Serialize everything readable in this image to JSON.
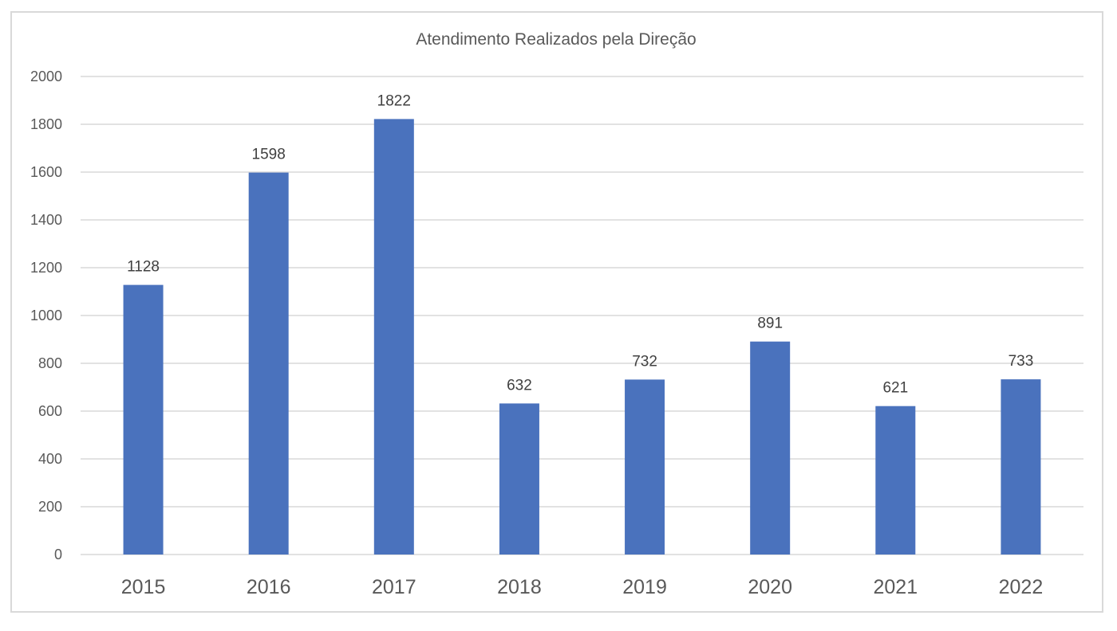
{
  "chart_data": {
    "type": "bar",
    "title": "Atendimento Realizados pela Direção",
    "categories": [
      "2015",
      "2016",
      "2017",
      "2018",
      "2019",
      "2020",
      "2021",
      "2022"
    ],
    "values": [
      1128,
      1598,
      1822,
      632,
      732,
      891,
      621,
      733
    ],
    "xlabel": "",
    "ylabel": "",
    "ylim": [
      0,
      2000
    ],
    "yticks": [
      0,
      200,
      400,
      600,
      800,
      1000,
      1200,
      1400,
      1600,
      1800,
      2000
    ],
    "grid": true,
    "data_labels": true,
    "legend": "none",
    "bar_color": "#4a72bd"
  }
}
